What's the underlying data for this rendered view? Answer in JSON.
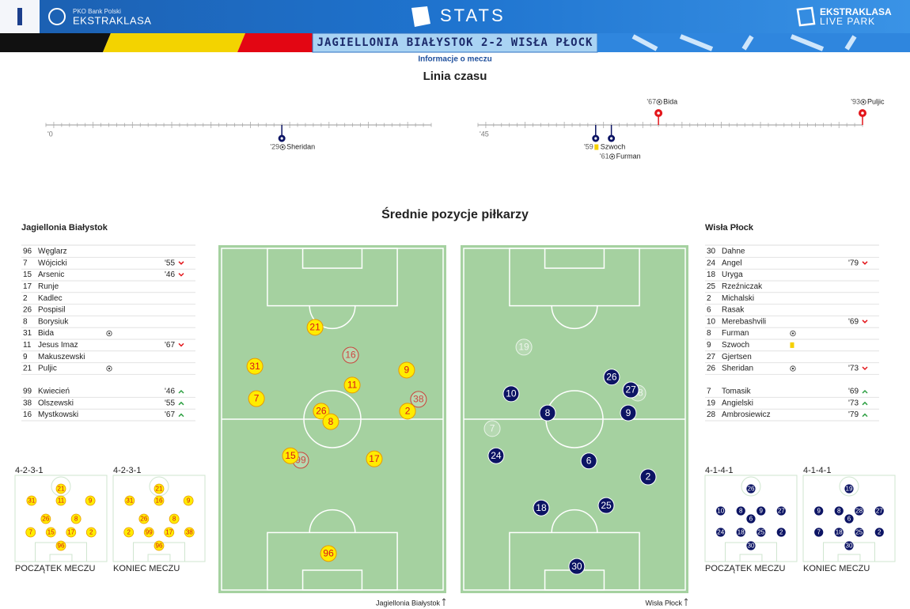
{
  "header": {
    "bank": "PKO Bank Polski",
    "league": "EKSTRAKLASA",
    "stats": "STATS",
    "live_top": "EKSTRAKLASA",
    "live_bottom": "LIVE PARK",
    "match": "JAGIELLONIA BIAŁYSTOK 2-2 WISŁA PŁOCK",
    "subtitle": "Informacje o meczu"
  },
  "timeline": {
    "title": "Linia czasu",
    "halves": [
      {
        "start_label": "'0",
        "xlim": [
          -1,
          48
        ],
        "events": [
          {
            "minute": 29,
            "label": "'29",
            "player": "Sheridan",
            "team": "away",
            "kind": "goal"
          }
        ]
      },
      {
        "start_label": "'45",
        "xlim": [
          44,
          93
        ],
        "events": [
          {
            "minute": 59,
            "label": "'59",
            "player": "Szwoch",
            "team": "away",
            "kind": "yellow"
          },
          {
            "minute": 61,
            "label": "'61",
            "player": "Furman",
            "team": "away",
            "kind": "goal"
          },
          {
            "minute": 67,
            "label": "'67",
            "player": "Bida",
            "team": "home",
            "kind": "goal"
          },
          {
            "minute": 93,
            "label": "'93",
            "player": "Puljic",
            "team": "home",
            "kind": "goal"
          }
        ]
      }
    ]
  },
  "positions_title": "Średnie pozycje piłkarzy",
  "teams": [
    {
      "name": "Jagiellonia Białystok",
      "fill": "#ffec00",
      "text": "#d7141a",
      "lineup": [
        {
          "number": 96,
          "name": "Węglarz"
        },
        {
          "number": 7,
          "name": "Wójcicki",
          "out": "'55"
        },
        {
          "number": 15,
          "name": "Arsenic",
          "out": "'46"
        },
        {
          "number": 17,
          "name": "Runje"
        },
        {
          "number": 2,
          "name": "Kadlec"
        },
        {
          "number": 26,
          "name": "Pospisil"
        },
        {
          "number": 8,
          "name": "Borysiuk"
        },
        {
          "number": 31,
          "name": "Bida",
          "goal": true
        },
        {
          "number": 11,
          "name": "Jesus Imaz",
          "out": "'67"
        },
        {
          "number": 9,
          "name": "Makuszewski"
        },
        {
          "number": 21,
          "name": "Puljic",
          "goal": true
        }
      ],
      "subs": [
        {
          "number": 99,
          "name": "Kwiecień",
          "in": "'46"
        },
        {
          "number": 38,
          "name": "Olszewski",
          "in": "'55"
        },
        {
          "number": 16,
          "name": "Mystkowski",
          "in": "'67"
        }
      ],
      "positions": [
        {
          "number": 21,
          "x": 42.4,
          "y": 23.6
        },
        {
          "number": 16,
          "x": 58.0,
          "y": 31.6,
          "sub": true
        },
        {
          "number": 31,
          "x": 16.0,
          "y": 34.8
        },
        {
          "number": 9,
          "x": 82.6,
          "y": 35.9
        },
        {
          "number": 11,
          "x": 58.7,
          "y": 40.2
        },
        {
          "number": 38,
          "x": 87.8,
          "y": 44.3,
          "sub": true
        },
        {
          "number": 7,
          "x": 16.7,
          "y": 44.1
        },
        {
          "number": 26,
          "x": 45.1,
          "y": 47.7
        },
        {
          "number": 2,
          "x": 83.0,
          "y": 47.7
        },
        {
          "number": 8,
          "x": 49.3,
          "y": 50.7
        },
        {
          "number": 99,
          "x": 36.1,
          "y": 61.8,
          "sub": true
        },
        {
          "number": 15,
          "x": 31.6,
          "y": 60.5
        },
        {
          "number": 17,
          "x": 68.4,
          "y": 61.4
        },
        {
          "number": 96,
          "x": 48.3,
          "y": 88.6
        }
      ],
      "formations": [
        {
          "name": "4-2-3-1",
          "caption": "POCZĄTEK MECZU",
          "rows": [
            [
              21
            ],
            [
              31,
              11,
              9
            ],
            [
              26,
              8
            ],
            [
              7,
              15,
              17,
              2
            ],
            [
              96
            ]
          ]
        },
        {
          "name": "4-2-3-1",
          "caption": "KONIEC MECZU",
          "rows": [
            [
              21
            ],
            [
              31,
              16,
              9
            ],
            [
              26,
              8
            ],
            [
              2,
              99,
              17,
              38
            ],
            [
              96
            ]
          ]
        }
      ]
    },
    {
      "name": "Wisła Płock",
      "fill": "#0c1464",
      "text": "#ffffff",
      "lineup": [
        {
          "number": 30,
          "name": "Dahne"
        },
        {
          "number": 24,
          "name": "Angel",
          "out": "'79"
        },
        {
          "number": 18,
          "name": "Uryga"
        },
        {
          "number": 25,
          "name": "Rzeźniczak"
        },
        {
          "number": 2,
          "name": "Michalski"
        },
        {
          "number": 6,
          "name": "Rasak"
        },
        {
          "number": 10,
          "name": "Merebashvili",
          "out": "'69"
        },
        {
          "number": 8,
          "name": "Furman",
          "goal": true
        },
        {
          "number": 9,
          "name": "Szwoch",
          "card": "yellow"
        },
        {
          "number": 27,
          "name": "Gjertsen"
        },
        {
          "number": 26,
          "name": "Sheridan",
          "goal": true,
          "out": "'73"
        }
      ],
      "subs": [
        {
          "number": 7,
          "name": "Tomasik",
          "in": "'69"
        },
        {
          "number": 19,
          "name": "Angielski",
          "in": "'73"
        },
        {
          "number": 28,
          "name": "Ambrosiewicz",
          "in": "'79"
        }
      ],
      "positions": [
        {
          "number": 19,
          "x": 27.8,
          "y": 29.3,
          "sub": true
        },
        {
          "number": 28,
          "x": 77.8,
          "y": 42.5,
          "sub": true
        },
        {
          "number": 26,
          "x": 66.3,
          "y": 37.9
        },
        {
          "number": 27,
          "x": 74.7,
          "y": 41.6
        },
        {
          "number": 10,
          "x": 22.2,
          "y": 42.7
        },
        {
          "number": 8,
          "x": 38.2,
          "y": 48.2
        },
        {
          "number": 9,
          "x": 73.6,
          "y": 48.2
        },
        {
          "number": 7,
          "x": 13.9,
          "y": 52.7,
          "sub": true
        },
        {
          "number": 24,
          "x": 15.6,
          "y": 60.5
        },
        {
          "number": 6,
          "x": 56.3,
          "y": 62.0
        },
        {
          "number": 2,
          "x": 82.3,
          "y": 66.6
        },
        {
          "number": 18,
          "x": 35.4,
          "y": 75.5
        },
        {
          "number": 25,
          "x": 63.9,
          "y": 74.8
        },
        {
          "number": 30,
          "x": 51.0,
          "y": 92.3
        }
      ],
      "formations": [
        {
          "name": "4-1-4-1",
          "caption": "POCZĄTEK MECZU",
          "rows": [
            [
              26
            ],
            [
              10,
              8,
              9,
              27
            ],
            [
              6
            ],
            [
              24,
              18,
              25,
              2
            ],
            [
              30
            ]
          ]
        },
        {
          "name": "4-1-4-1",
          "caption": "KONIEC MECZU",
          "rows": [
            [
              19
            ],
            [
              9,
              8,
              28,
              27
            ],
            [
              6
            ],
            [
              7,
              18,
              25,
              2
            ],
            [
              30
            ]
          ]
        }
      ]
    }
  ]
}
